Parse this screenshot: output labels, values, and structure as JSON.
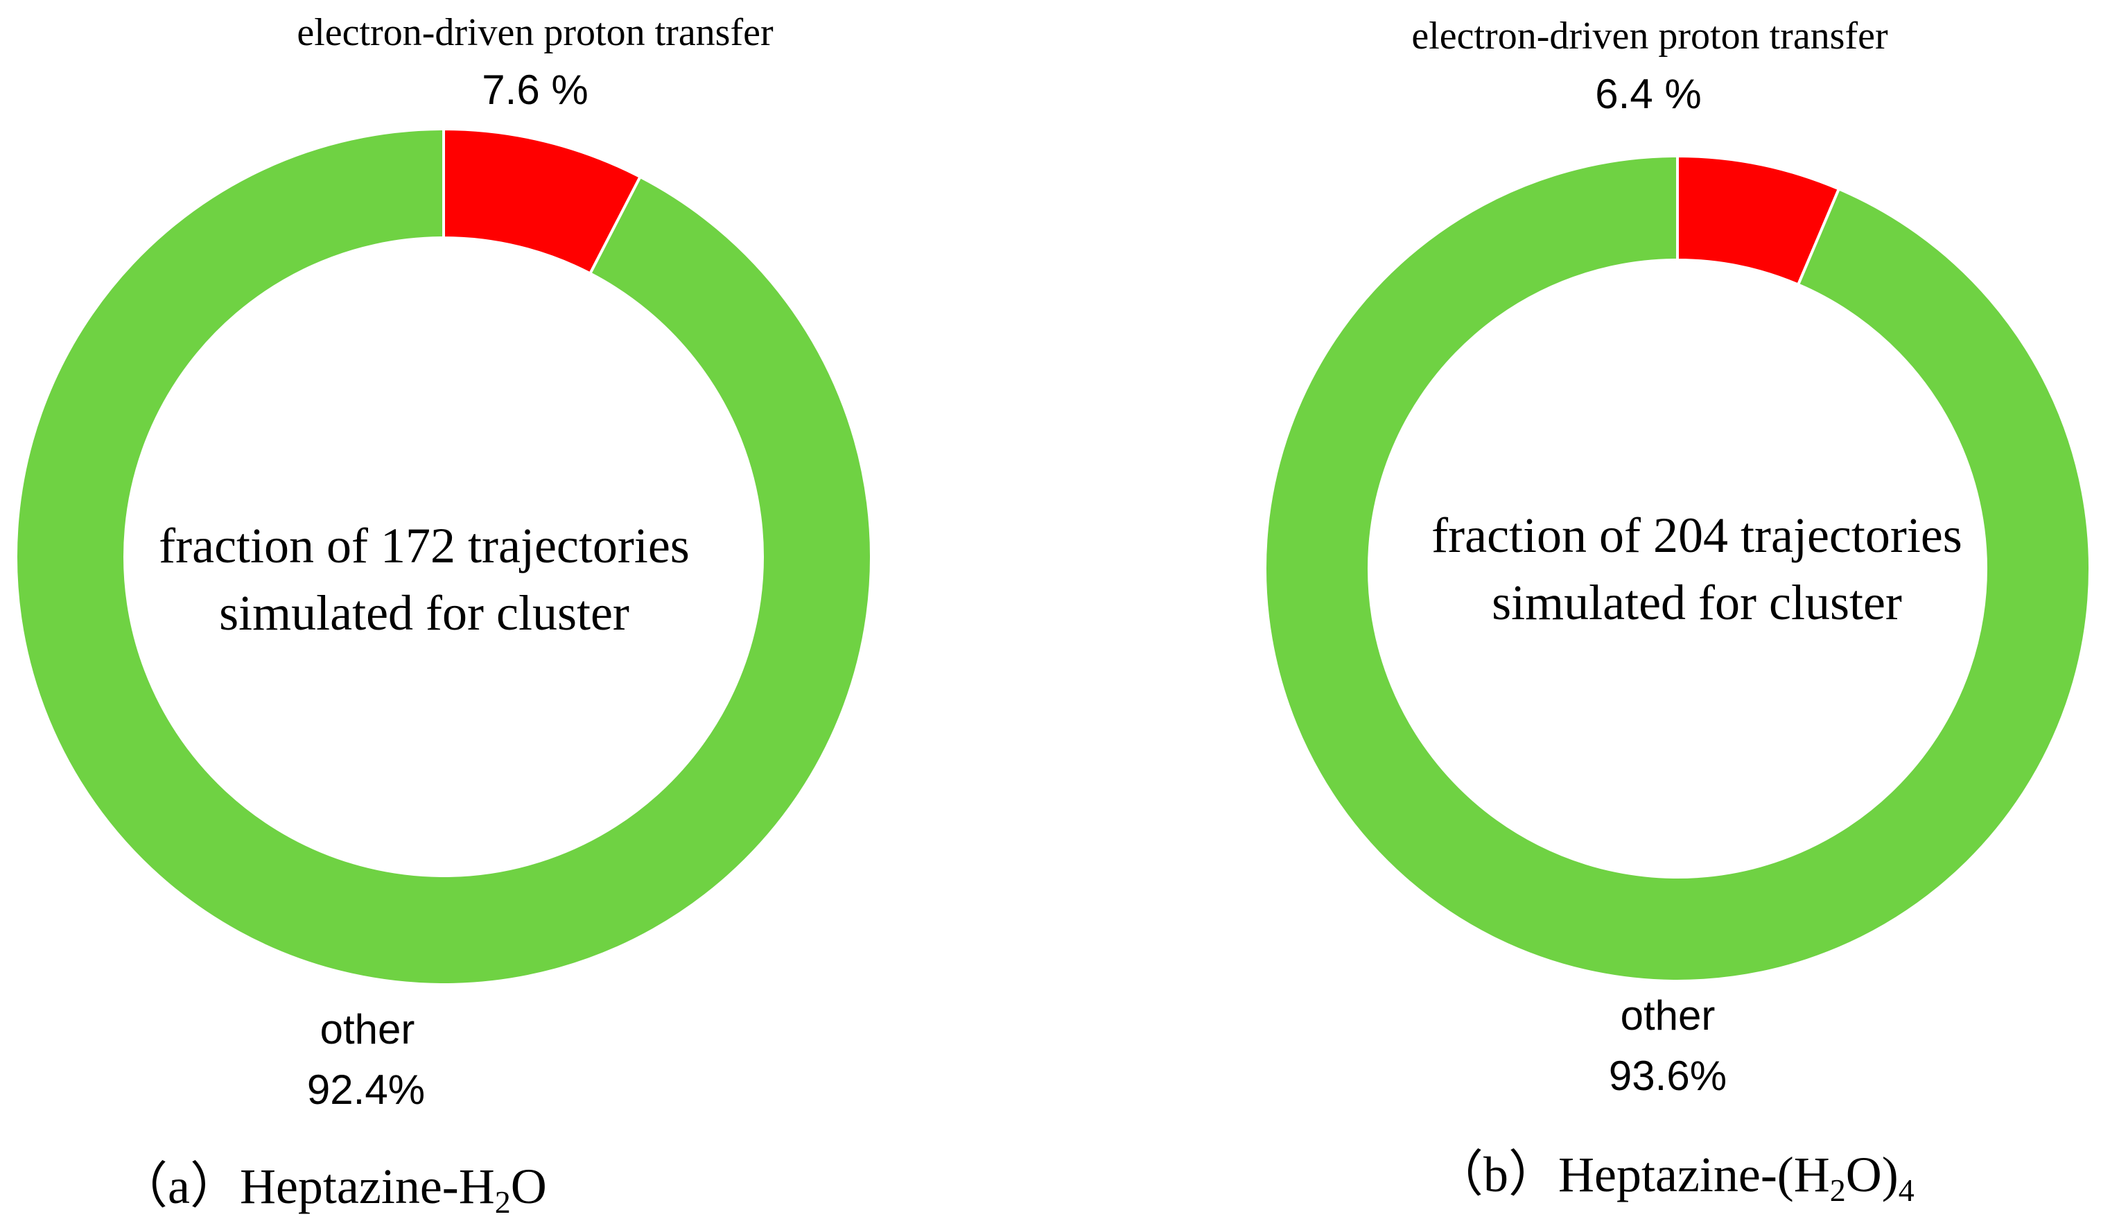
{
  "colors": {
    "edpt": "#ff0000",
    "other": "#6fd243",
    "text": "#000000",
    "background": "#ffffff"
  },
  "chart_data": [
    {
      "type": "pie",
      "variant": "donut",
      "slices": [
        {
          "label": "electron-driven proton transfer",
          "value": 7.6,
          "value_label": "7.6 %",
          "color": "#ff0000"
        },
        {
          "label": "other",
          "value": 92.4,
          "value_label": "92.4%",
          "color": "#6fd243"
        }
      ],
      "center_text": [
        "fraction of 172 trajectories",
        "simulated for cluster"
      ],
      "caption": {
        "prefix": "（a）Heptazine-H",
        "sub1": "2",
        "mid": "O",
        "sub2": "",
        "suffix": ""
      }
    },
    {
      "type": "pie",
      "variant": "donut",
      "slices": [
        {
          "label": "electron-driven proton transfer",
          "value": 6.4,
          "value_label": "6.4 %",
          "color": "#ff0000"
        },
        {
          "label": "other",
          "value": 93.6,
          "value_label": "93.6%",
          "color": "#6fd243"
        }
      ],
      "center_text": [
        "fraction of 204 trajectories",
        "simulated for cluster"
      ],
      "caption": {
        "prefix": "（b）Heptazine-(H",
        "sub1": "2",
        "mid": "O)",
        "sub2": "4",
        "suffix": ""
      }
    }
  ]
}
